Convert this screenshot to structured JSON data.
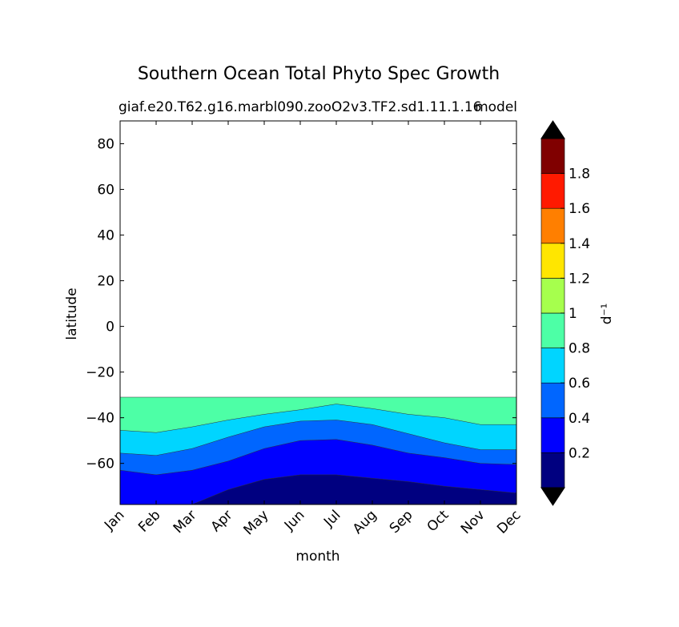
{
  "chart_data": {
    "type": "heatmap",
    "title": "Southern Ocean Total Phyto Spec Growth",
    "subtitle_left": "giaf.e20.T62.g16.marbl090.zooO2v3.TF2.sd1.11.1.16",
    "subtitle_right": "model",
    "xlabel": "month",
    "ylabel": "latitude",
    "x_ticks": [
      "Jan",
      "Feb",
      "Mar",
      "Apr",
      "May",
      "Jun",
      "Jul",
      "Aug",
      "Sep",
      "Oct",
      "Nov",
      "Dec"
    ],
    "ylim": [
      -78,
      90
    ],
    "y_ticks": [
      -60,
      -40,
      -20,
      0,
      20,
      40,
      60,
      80
    ],
    "y_tick_labels": [
      "−60",
      "−40",
      "−20",
      "0",
      "20",
      "40",
      "60",
      "80"
    ],
    "data_lat_max": -31,
    "data_lat_min": -78,
    "contour_levels": [
      0,
      0.2,
      0.4,
      0.6,
      0.8,
      1.0,
      1.2,
      1.4,
      1.6,
      1.8,
      2.0
    ],
    "colorbar": {
      "label": "d⁻¹",
      "tick_values": [
        0.2,
        0.4,
        0.6,
        0.8,
        1.0,
        1.2,
        1.4,
        1.6,
        1.8
      ],
      "tick_labels": [
        "0.2",
        "0.4",
        "0.6",
        "0.8",
        "1",
        "1.2",
        "1.4",
        "1.6",
        "1.8"
      ],
      "colors": [
        "#000080",
        "#0000ff",
        "#0066ff",
        "#00d5ff",
        "#4dffa6",
        "#a6ff4d",
        "#ffe600",
        "#ff7f00",
        "#ff1a00",
        "#800000"
      ],
      "extend": "both",
      "over_color": "#000000",
      "under_color": "#000000"
    },
    "contour_boundaries": [
      {
        "level": 0.8,
        "fill_above": "#4dffa6",
        "lat": [
          -45.5,
          -46.5,
          -44,
          -41,
          -38.5,
          -36.5,
          -34,
          -36,
          -38.5,
          -40,
          -43,
          -43
        ]
      },
      {
        "level": 0.6,
        "fill_above": "#00d5ff",
        "lat": [
          -55.5,
          -56.5,
          -53.5,
          -48.5,
          -44,
          -41.5,
          -41,
          -43,
          -47,
          -51,
          -54,
          -54
        ]
      },
      {
        "level": 0.4,
        "fill_above": "#0066ff",
        "lat": [
          -63,
          -65,
          -63,
          -59,
          -53.5,
          -50,
          -49.5,
          -52,
          -55.5,
          -57.5,
          -60,
          -60.5
        ]
      },
      {
        "level": 0.2,
        "fill_above": "#0000ff",
        "lat": [
          -78,
          -78,
          -78,
          -71.5,
          -67,
          -65,
          -65,
          -66.5,
          -68,
          -70,
          -71.5,
          -73
        ]
      }
    ]
  }
}
